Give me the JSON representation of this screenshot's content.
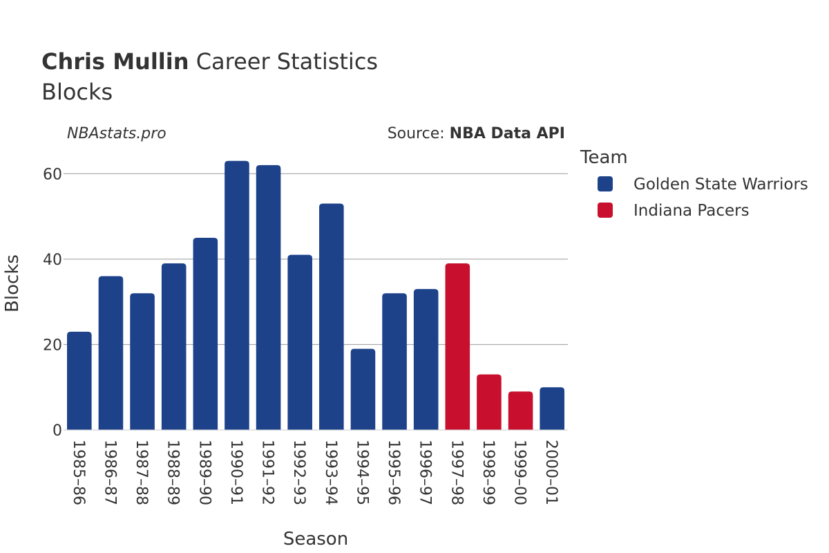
{
  "title": {
    "player": "Chris Mullin",
    "rest": " Career Statistics",
    "subtitle": "Blocks"
  },
  "watermark": "NBAstats.pro",
  "source": {
    "prefix": "Source: ",
    "name": "NBA Data API"
  },
  "legend": {
    "title": "Team",
    "position": "right",
    "items": [
      {
        "name": "Golden State Warriors",
        "color": "#1d428a"
      },
      {
        "name": "Indiana Pacers",
        "color": "#c8102e"
      }
    ]
  },
  "chart_data": {
    "type": "bar",
    "xlabel": "Season",
    "ylabel": "Blocks",
    "ylim": [
      0,
      67
    ],
    "yticks": [
      0,
      20,
      40,
      60
    ],
    "grid": true,
    "categories": [
      "1985–86",
      "1986–87",
      "1987–88",
      "1988–89",
      "1989–90",
      "1990–91",
      "1991–92",
      "1992–93",
      "1993–94",
      "1994–95",
      "1995–96",
      "1996–97",
      "1997–98",
      "1998–99",
      "1999–00",
      "2000–01"
    ],
    "values": [
      23,
      36,
      32,
      39,
      45,
      63,
      62,
      41,
      53,
      19,
      32,
      33,
      39,
      13,
      9,
      10
    ],
    "teams": [
      "Golden State Warriors",
      "Golden State Warriors",
      "Golden State Warriors",
      "Golden State Warriors",
      "Golden State Warriors",
      "Golden State Warriors",
      "Golden State Warriors",
      "Golden State Warriors",
      "Golden State Warriors",
      "Golden State Warriors",
      "Golden State Warriors",
      "Golden State Warriors",
      "Indiana Pacers",
      "Indiana Pacers",
      "Indiana Pacers",
      "Golden State Warriors"
    ]
  }
}
